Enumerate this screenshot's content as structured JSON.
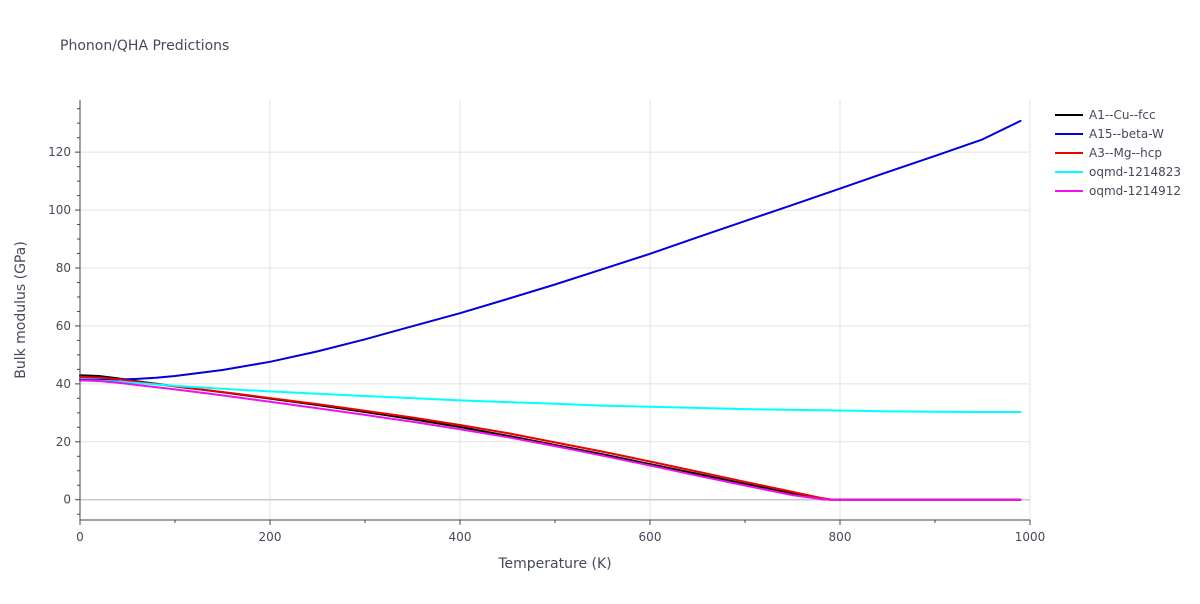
{
  "chart_data": {
    "type": "line",
    "title": "Phonon/QHA Predictions",
    "xlabel": "Temperature (K)",
    "ylabel": "Bulk modulus (GPa)",
    "xlim": [
      0,
      1000
    ],
    "ylim": [
      -7,
      138
    ],
    "x_major_ticks": [
      0,
      200,
      400,
      600,
      800,
      1000
    ],
    "x_minor_ticks": [
      100,
      300,
      500,
      700,
      900
    ],
    "y_major_ticks": [
      0,
      20,
      40,
      60,
      80,
      100,
      120
    ],
    "y_minor_ticks": [
      -5,
      5,
      10,
      15,
      25,
      30,
      35,
      45,
      50,
      55,
      65,
      70,
      75,
      85,
      90,
      95,
      105,
      110,
      115,
      125,
      130,
      135
    ],
    "x_tick_labels": [
      "0",
      "200",
      "400",
      "600",
      "800",
      "1000"
    ],
    "y_tick_labels": [
      "0",
      "20",
      "40",
      "60",
      "80",
      "100",
      "120"
    ],
    "grid": true,
    "legend_position": "right",
    "series": [
      {
        "name": "A1--Cu--fcc",
        "color": "#000000",
        "x": [
          0,
          20,
          40,
          60,
          100,
          150,
          200,
          250,
          300,
          350,
          400,
          450,
          500,
          550,
          600,
          650,
          700,
          750,
          780,
          790,
          800,
          850,
          900,
          950,
          990
        ],
        "y": [
          43,
          42.7,
          41.9,
          40.9,
          39.2,
          37.1,
          34.9,
          32.7,
          30.3,
          27.8,
          25.1,
          22.1,
          18.9,
          15.7,
          12.3,
          8.9,
          5.5,
          2.1,
          0.2,
          0,
          0,
          0,
          0,
          0,
          0
        ]
      },
      {
        "name": "A15--beta-W",
        "color": "#0000dd",
        "x": [
          0,
          20,
          40,
          60,
          80,
          100,
          150,
          200,
          250,
          300,
          350,
          400,
          450,
          500,
          550,
          600,
          650,
          700,
          750,
          800,
          850,
          900,
          950,
          990
        ],
        "y": [
          41.5,
          41.4,
          41.5,
          41.7,
          42.1,
          42.7,
          44.8,
          47.6,
          51.2,
          55.4,
          59.9,
          64.4,
          69.3,
          74.3,
          79.6,
          84.9,
          90.6,
          96.2,
          101.8,
          107.4,
          113.1,
          118.7,
          124.4,
          130.8
        ]
      },
      {
        "name": "A3--Mg--hcp",
        "color": "#ee0000",
        "x": [
          0,
          20,
          40,
          60,
          100,
          150,
          200,
          250,
          300,
          350,
          400,
          450,
          500,
          550,
          600,
          650,
          700,
          750,
          780,
          790,
          800,
          850,
          900,
          950,
          990
        ],
        "y": [
          42.4,
          42.2,
          41.6,
          40.7,
          39.1,
          37.2,
          35.1,
          33.0,
          30.7,
          28.4,
          25.8,
          23.0,
          19.8,
          16.6,
          13.2,
          9.7,
          6.2,
          2.7,
          0.6,
          0.1,
          0,
          0,
          0,
          0,
          0
        ]
      },
      {
        "name": "oqmd-1214823",
        "color": "#00ffff",
        "x": [
          0,
          20,
          40,
          60,
          100,
          150,
          200,
          250,
          300,
          350,
          400,
          450,
          500,
          550,
          600,
          650,
          700,
          750,
          800,
          850,
          900,
          950,
          990
        ],
        "y": [
          41.2,
          41.1,
          40.8,
          40.3,
          39.3,
          38.3,
          37.4,
          36.6,
          35.8,
          35.1,
          34.3,
          33.7,
          33.1,
          32.5,
          32.1,
          31.7,
          31.3,
          31.0,
          30.8,
          30.5,
          30.4,
          30.3,
          30.3
        ]
      },
      {
        "name": "oqmd-1214912",
        "color": "#ee11ee",
        "x": [
          0,
          20,
          40,
          60,
          100,
          150,
          200,
          250,
          300,
          350,
          400,
          450,
          500,
          550,
          600,
          650,
          700,
          750,
          780,
          790,
          800,
          850,
          900,
          950,
          990
        ],
        "y": [
          41.2,
          41.0,
          40.4,
          39.6,
          38.1,
          36.0,
          33.8,
          31.6,
          29.3,
          26.9,
          24.3,
          21.6,
          18.5,
          15.2,
          11.8,
          8.3,
          4.9,
          1.6,
          0.2,
          0,
          0,
          0,
          0,
          0,
          0
        ]
      }
    ]
  }
}
